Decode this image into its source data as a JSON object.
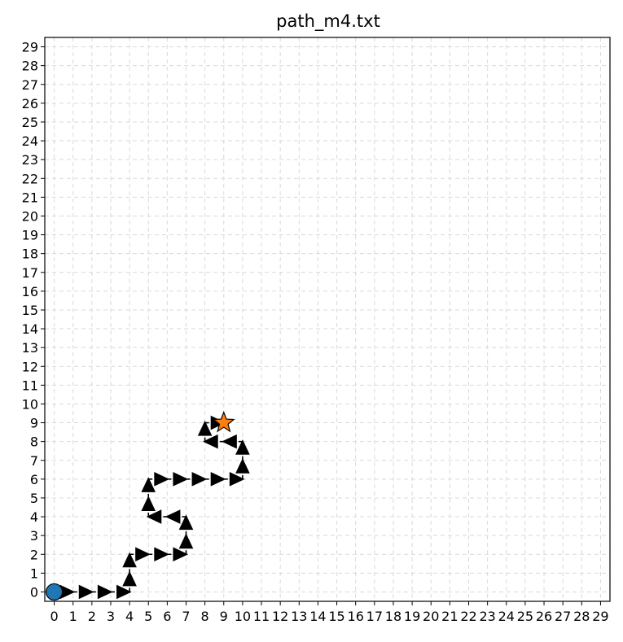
{
  "chart_data": {
    "type": "line",
    "title": "path_m4.txt",
    "xlabel": "",
    "ylabel": "",
    "xlim": [
      -0.5,
      29.5
    ],
    "ylim": [
      -0.5,
      29.5
    ],
    "x_ticks": [
      0,
      1,
      2,
      3,
      4,
      5,
      6,
      7,
      8,
      9,
      10,
      11,
      12,
      13,
      14,
      15,
      16,
      17,
      18,
      19,
      20,
      21,
      22,
      23,
      24,
      25,
      26,
      27,
      28,
      29
    ],
    "y_ticks": [
      0,
      1,
      2,
      3,
      4,
      5,
      6,
      7,
      8,
      9,
      10,
      11,
      12,
      13,
      14,
      15,
      16,
      17,
      18,
      19,
      20,
      21,
      22,
      23,
      24,
      25,
      26,
      27,
      28,
      29
    ],
    "grid": true,
    "path": [
      [
        0,
        0
      ],
      [
        1,
        0
      ],
      [
        2,
        0
      ],
      [
        3,
        0
      ],
      [
        4,
        0
      ],
      [
        4,
        1
      ],
      [
        4,
        2
      ],
      [
        5,
        2
      ],
      [
        6,
        2
      ],
      [
        7,
        2
      ],
      [
        7,
        3
      ],
      [
        7,
        4
      ],
      [
        6,
        4
      ],
      [
        5,
        4
      ],
      [
        5,
        5
      ],
      [
        5,
        6
      ],
      [
        6,
        6
      ],
      [
        7,
        6
      ],
      [
        8,
        6
      ],
      [
        9,
        6
      ],
      [
        10,
        6
      ],
      [
        10,
        7
      ],
      [
        10,
        8
      ],
      [
        9,
        8
      ],
      [
        8,
        8
      ],
      [
        8,
        9
      ],
      [
        9,
        9
      ]
    ],
    "start": [
      0,
      0
    ],
    "goal": [
      9,
      9
    ],
    "colors": {
      "start": "#1f77b4",
      "goal": "#ff7f0e",
      "path": "#000000",
      "grid": "#d9d9d9"
    }
  }
}
